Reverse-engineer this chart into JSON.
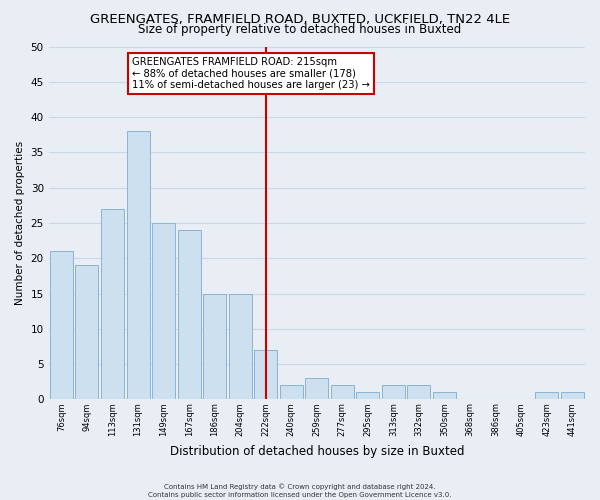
{
  "title": "GREENGATES, FRAMFIELD ROAD, BUXTED, UCKFIELD, TN22 4LE",
  "subtitle": "Size of property relative to detached houses in Buxted",
  "xlabel": "Distribution of detached houses by size in Buxted",
  "ylabel": "Number of detached properties",
  "bin_labels": [
    "76sqm",
    "94sqm",
    "113sqm",
    "131sqm",
    "149sqm",
    "167sqm",
    "186sqm",
    "204sqm",
    "222sqm",
    "240sqm",
    "259sqm",
    "277sqm",
    "295sqm",
    "313sqm",
    "332sqm",
    "350sqm",
    "368sqm",
    "386sqm",
    "405sqm",
    "423sqm",
    "441sqm"
  ],
  "bar_values": [
    21,
    19,
    27,
    38,
    25,
    24,
    15,
    15,
    7,
    2,
    3,
    2,
    1,
    2,
    2,
    1,
    0,
    0,
    0,
    1,
    1
  ],
  "bar_color": "#cce0f0",
  "bar_edge_color": "#8ab4d4",
  "vline_index": 8,
  "vline_color": "#cc0000",
  "annotation_title": "GREENGATES FRAMFIELD ROAD: 215sqm",
  "annotation_line1": "← 88% of detached houses are smaller (178)",
  "annotation_line2": "11% of semi-detached houses are larger (23) →",
  "annotation_box_color": "#cc0000",
  "ylim": [
    0,
    50
  ],
  "yticks": [
    0,
    5,
    10,
    15,
    20,
    25,
    30,
    35,
    40,
    45,
    50
  ],
  "footer_line1": "Contains HM Land Registry data © Crown copyright and database right 2024.",
  "footer_line2": "Contains public sector information licensed under the Open Government Licence v3.0.",
  "background_color": "#e8eef4",
  "grid_color": "#c8d8e8",
  "title_fontsize": 9.5,
  "subtitle_fontsize": 8.5,
  "ylabel_fontsize": 7.5,
  "xlabel_fontsize": 8.5
}
